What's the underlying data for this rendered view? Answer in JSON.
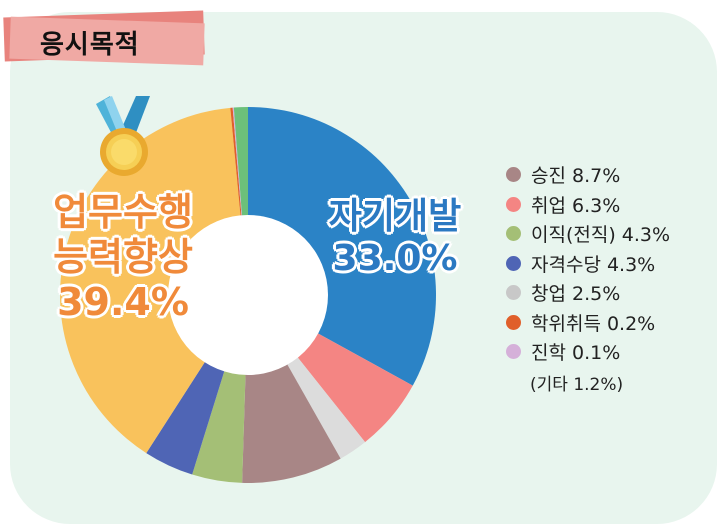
{
  "header": {
    "title": "응시목적"
  },
  "big_labels": {
    "right_line1": "자기개발",
    "right_line2": "33.0%",
    "left_line1": "업무수행",
    "left_line2": "능력향상",
    "left_line3": "39.4%"
  },
  "legend": {
    "items": [
      {
        "label": "승진 8.7%",
        "color": "#a88686"
      },
      {
        "label": "취업 6.3%",
        "color": "#f48583"
      },
      {
        "label": "이직(전직) 4.3%",
        "color": "#a4bf76"
      },
      {
        "label": "자격수당 4.3%",
        "color": "#4f65b5"
      },
      {
        "label": "창업 2.5%",
        "color": "#c8c8c8"
      },
      {
        "label": "학위취득 0.2%",
        "color": "#e05f2a"
      },
      {
        "label": "진학 0.1%",
        "color": "#d5b0d9"
      }
    ],
    "note": "(기타 1.2%)"
  },
  "chart_data": {
    "type": "pie",
    "donut": true,
    "start": "top",
    "direction": "clockwise",
    "slices": [
      {
        "name": "자기개발",
        "value": 33.0,
        "color": "#2b83c6"
      },
      {
        "name": "취업",
        "value": 6.3,
        "color": "#f48583"
      },
      {
        "name": "창업",
        "value": 2.5,
        "color": "#dcdcdc"
      },
      {
        "name": "승진",
        "value": 8.7,
        "color": "#a88686"
      },
      {
        "name": "이직(전직)",
        "value": 4.3,
        "color": "#a4bf76"
      },
      {
        "name": "자격수당",
        "value": 4.3,
        "color": "#4f65b5"
      },
      {
        "name": "업무수행 능력향상",
        "value": 39.4,
        "color": "#f9c25c"
      },
      {
        "name": "학위취득",
        "value": 0.2,
        "color": "#e05f2a"
      },
      {
        "name": "진학",
        "value": 0.1,
        "color": "#d5b0d9"
      },
      {
        "name": "기타",
        "value": 1.2,
        "color": "#6cc07a"
      }
    ]
  }
}
